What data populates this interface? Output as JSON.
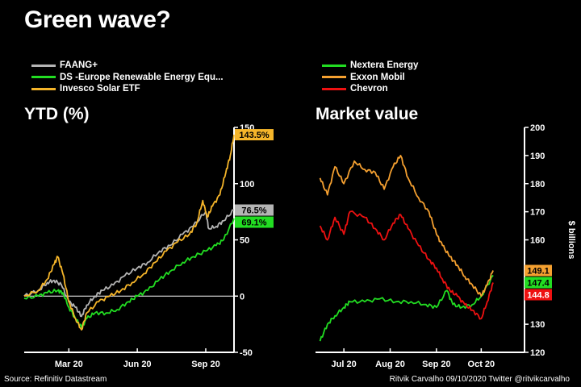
{
  "page": {
    "title": "Green wave?",
    "source": "Source: Refinitiv Datastream",
    "credit": "Ritvik Carvalho 09/10/2020 Twitter @ritvikcarvalho"
  },
  "legend_left": [
    {
      "name": "FAANG+",
      "color": "#b4b4b4"
    },
    {
      "name": "DS -Europe Renewable Energy Equ...",
      "color": "#22dd22"
    },
    {
      "name": "Invesco Solar ETF",
      "color": "#f5b52a"
    }
  ],
  "legend_right": [
    {
      "name": "Nextera Energy",
      "color": "#22dd22"
    },
    {
      "name": "Exxon Mobil",
      "color": "#f5a030"
    },
    {
      "name": "Chevron",
      "color": "#ee1111"
    }
  ],
  "chart_data": [
    {
      "type": "line",
      "title": "YTD (%)",
      "ylim": [
        -50,
        150
      ],
      "yticks": [
        -50,
        0,
        50,
        100,
        150
      ],
      "xlim": [
        "2020-01-01",
        "2020-10-09"
      ],
      "xticks": [
        {
          "date": "2020-03-01",
          "label": "Mar 20"
        },
        {
          "date": "2020-06-01",
          "label": "Jun 20"
        },
        {
          "date": "2020-09-01",
          "label": "Sep 20"
        }
      ],
      "zero_line": true,
      "series": [
        {
          "name": "FAANG+",
          "color": "#b4b4b4",
          "end_label": "76.5%",
          "points": [
            [
              "2020-01-01",
              0
            ],
            [
              "2020-01-20",
              5
            ],
            [
              "2020-02-01",
              12
            ],
            [
              "2020-02-10",
              14
            ],
            [
              "2020-02-20",
              10
            ],
            [
              "2020-03-01",
              -5
            ],
            [
              "2020-03-10",
              -10
            ],
            [
              "2020-03-18",
              -18
            ],
            [
              "2020-03-25",
              -8
            ],
            [
              "2020-04-05",
              0
            ],
            [
              "2020-04-15",
              5
            ],
            [
              "2020-04-30",
              10
            ],
            [
              "2020-05-15",
              18
            ],
            [
              "2020-06-01",
              25
            ],
            [
              "2020-06-15",
              30
            ],
            [
              "2020-07-01",
              40
            ],
            [
              "2020-07-15",
              45
            ],
            [
              "2020-08-01",
              55
            ],
            [
              "2020-08-15",
              62
            ],
            [
              "2020-09-01",
              75
            ],
            [
              "2020-09-05",
              60
            ],
            [
              "2020-09-15",
              62
            ],
            [
              "2020-09-25",
              67
            ],
            [
              "2020-10-09",
              76.5
            ]
          ]
        },
        {
          "name": "DS -Europe Renewable Energy Equ...",
          "color": "#22dd22",
          "end_label": "69.1%",
          "points": [
            [
              "2020-01-01",
              -2
            ],
            [
              "2020-01-20",
              0
            ],
            [
              "2020-02-01",
              3
            ],
            [
              "2020-02-15",
              5
            ],
            [
              "2020-02-22",
              3
            ],
            [
              "2020-03-01",
              -10
            ],
            [
              "2020-03-10",
              -20
            ],
            [
              "2020-03-18",
              -28
            ],
            [
              "2020-03-25",
              -20
            ],
            [
              "2020-04-05",
              -15
            ],
            [
              "2020-04-20",
              -15
            ],
            [
              "2020-05-05",
              -12
            ],
            [
              "2020-05-20",
              -5
            ],
            [
              "2020-06-01",
              0
            ],
            [
              "2020-06-15",
              5
            ],
            [
              "2020-07-01",
              15
            ],
            [
              "2020-07-15",
              22
            ],
            [
              "2020-08-01",
              30
            ],
            [
              "2020-08-15",
              35
            ],
            [
              "2020-09-01",
              40
            ],
            [
              "2020-09-15",
              45
            ],
            [
              "2020-09-25",
              50
            ],
            [
              "2020-10-09",
              69.1
            ]
          ]
        },
        {
          "name": "Invesco Solar ETF",
          "color": "#f5b52a",
          "end_label": "143.5%",
          "points": [
            [
              "2020-01-01",
              0
            ],
            [
              "2020-01-20",
              5
            ],
            [
              "2020-02-01",
              15
            ],
            [
              "2020-02-10",
              28
            ],
            [
              "2020-02-15",
              35
            ],
            [
              "2020-02-22",
              20
            ],
            [
              "2020-03-01",
              -5
            ],
            [
              "2020-03-10",
              -20
            ],
            [
              "2020-03-18",
              -30
            ],
            [
              "2020-03-25",
              -15
            ],
            [
              "2020-04-10",
              -5
            ],
            [
              "2020-04-25",
              0
            ],
            [
              "2020-05-10",
              5
            ],
            [
              "2020-05-25",
              12
            ],
            [
              "2020-06-10",
              20
            ],
            [
              "2020-06-25",
              30
            ],
            [
              "2020-07-10",
              40
            ],
            [
              "2020-07-25",
              48
            ],
            [
              "2020-08-10",
              55
            ],
            [
              "2020-08-20",
              65
            ],
            [
              "2020-08-28",
              85
            ],
            [
              "2020-09-03",
              70
            ],
            [
              "2020-09-10",
              80
            ],
            [
              "2020-09-20",
              90
            ],
            [
              "2020-09-28",
              110
            ],
            [
              "2020-10-04",
              125
            ],
            [
              "2020-10-09",
              143.5
            ]
          ]
        }
      ]
    },
    {
      "type": "line",
      "title": "Market value",
      "ylabel": "$ billions",
      "ylim": [
        120,
        200
      ],
      "yticks": [
        120,
        130,
        140,
        150,
        160,
        170,
        180,
        190,
        200
      ],
      "xlim": [
        "2020-06-12",
        "2020-10-30"
      ],
      "xticks": [
        {
          "date": "2020-07-01",
          "label": "Jul 20"
        },
        {
          "date": "2020-08-01",
          "label": "Aug 20"
        },
        {
          "date": "2020-09-01",
          "label": "Sep 20"
        },
        {
          "date": "2020-10-01",
          "label": "Oct 20"
        }
      ],
      "series": [
        {
          "name": "Nextera Energy",
          "color": "#22dd22",
          "end_label": "147.4",
          "points": [
            [
              "2020-06-15",
              124
            ],
            [
              "2020-06-20",
              130
            ],
            [
              "2020-06-25",
              133
            ],
            [
              "2020-07-01",
              136
            ],
            [
              "2020-07-05",
              138
            ],
            [
              "2020-07-15",
              138
            ],
            [
              "2020-07-25",
              139
            ],
            [
              "2020-08-05",
              138
            ],
            [
              "2020-08-15",
              138
            ],
            [
              "2020-08-25",
              137
            ],
            [
              "2020-09-01",
              136
            ],
            [
              "2020-09-08",
              142
            ],
            [
              "2020-09-12",
              137
            ],
            [
              "2020-09-18",
              136
            ],
            [
              "2020-09-25",
              137
            ],
            [
              "2020-10-01",
              140
            ],
            [
              "2020-10-09",
              147.4
            ]
          ]
        },
        {
          "name": "Exxon Mobil",
          "color": "#f5a030",
          "end_label": "149.1",
          "points": [
            [
              "2020-06-15",
              182
            ],
            [
              "2020-06-20",
              176
            ],
            [
              "2020-06-25",
              186
            ],
            [
              "2020-07-01",
              180
            ],
            [
              "2020-07-08",
              188
            ],
            [
              "2020-07-15",
              185
            ],
            [
              "2020-07-22",
              184
            ],
            [
              "2020-07-28",
              178
            ],
            [
              "2020-08-03",
              186
            ],
            [
              "2020-08-08",
              190
            ],
            [
              "2020-08-13",
              182
            ],
            [
              "2020-08-20",
              175
            ],
            [
              "2020-08-27",
              170
            ],
            [
              "2020-09-01",
              162
            ],
            [
              "2020-09-05",
              158
            ],
            [
              "2020-09-10",
              154
            ],
            [
              "2020-09-15",
              151
            ],
            [
              "2020-09-20",
              147
            ],
            [
              "2020-09-25",
              144
            ],
            [
              "2020-10-01",
              140
            ],
            [
              "2020-10-05",
              144
            ],
            [
              "2020-10-09",
              149.1
            ]
          ]
        },
        {
          "name": "Chevron",
          "color": "#ee1111",
          "end_label": "144.8",
          "points": [
            [
              "2020-06-15",
              165
            ],
            [
              "2020-06-20",
              160
            ],
            [
              "2020-06-25",
              168
            ],
            [
              "2020-07-01",
              162
            ],
            [
              "2020-07-05",
              170
            ],
            [
              "2020-07-15",
              168
            ],
            [
              "2020-07-22",
              164
            ],
            [
              "2020-07-28",
              160
            ],
            [
              "2020-08-03",
              166
            ],
            [
              "2020-08-08",
              169
            ],
            [
              "2020-08-13",
              164
            ],
            [
              "2020-08-20",
              158
            ],
            [
              "2020-08-27",
              153
            ],
            [
              "2020-09-01",
              150
            ],
            [
              "2020-09-05",
              146
            ],
            [
              "2020-09-10",
              142
            ],
            [
              "2020-09-15",
              140
            ],
            [
              "2020-09-20",
              137
            ],
            [
              "2020-09-25",
              135
            ],
            [
              "2020-10-01",
              132
            ],
            [
              "2020-10-05",
              138
            ],
            [
              "2020-10-09",
              144.8
            ]
          ]
        }
      ]
    }
  ]
}
